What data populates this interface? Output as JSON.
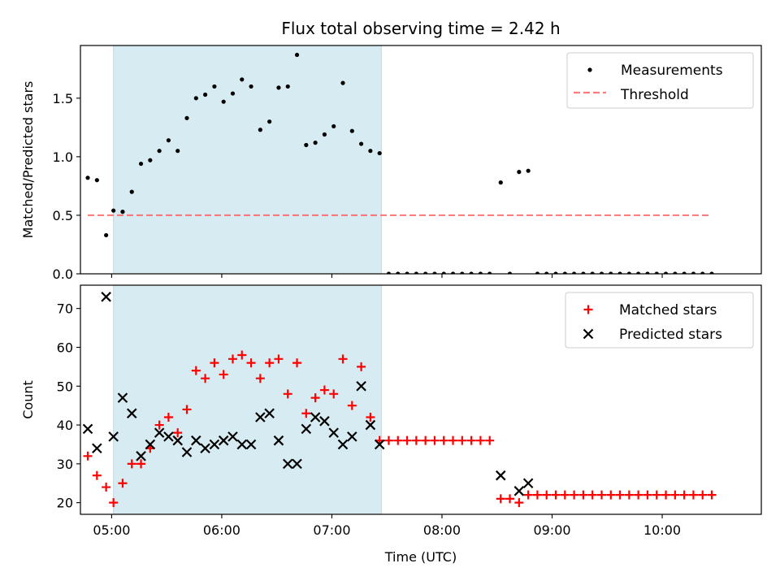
{
  "chart_data": [
    {
      "type": "scatter",
      "title": "Flux total observing time = 2.42 h",
      "xlabel": "",
      "ylabel": "Matched/Predicted stars",
      "ylim": [
        0,
        1.95
      ],
      "y_ticks": [
        "0.0",
        "0.5",
        "1.0",
        "1.5"
      ],
      "x_ticks": [
        "05:00",
        "06:00",
        "07:00",
        "08:00",
        "09:00",
        "10:00"
      ],
      "xlim": [
        "04:43",
        "10:54"
      ],
      "shaded_span": [
        "05:01",
        "07:27"
      ],
      "shaded_color": "#add8e6",
      "legend_position": "top-right",
      "series": [
        {
          "name": "Measurements",
          "marker": "dot",
          "color": "#000000",
          "points": [
            [
              "04:47",
              0.82
            ],
            [
              "04:52",
              0.8
            ],
            [
              "04:57",
              0.33
            ],
            [
              "05:01",
              0.54
            ],
            [
              "05:06",
              0.53
            ],
            [
              "05:11",
              0.7
            ],
            [
              "05:16",
              0.94
            ],
            [
              "05:21",
              0.97
            ],
            [
              "05:26",
              1.05
            ],
            [
              "05:31",
              1.14
            ],
            [
              "05:36",
              1.05
            ],
            [
              "05:41",
              1.33
            ],
            [
              "05:46",
              1.5
            ],
            [
              "05:51",
              1.53
            ],
            [
              "05:56",
              1.6
            ],
            [
              "06:01",
              1.47
            ],
            [
              "06:06",
              1.54
            ],
            [
              "06:11",
              1.66
            ],
            [
              "06:16",
              1.6
            ],
            [
              "06:21",
              1.23
            ],
            [
              "06:26",
              1.3
            ],
            [
              "06:31",
              1.59
            ],
            [
              "06:36",
              1.6
            ],
            [
              "06:41",
              1.87
            ],
            [
              "06:46",
              1.1
            ],
            [
              "06:51",
              1.12
            ],
            [
              "06:56",
              1.19
            ],
            [
              "07:01",
              1.26
            ],
            [
              "07:06",
              1.63
            ],
            [
              "07:11",
              1.22
            ],
            [
              "07:16",
              1.11
            ],
            [
              "07:21",
              1.05
            ],
            [
              "07:26",
              1.03
            ],
            [
              "07:31",
              0
            ],
            [
              "07:36",
              0
            ],
            [
              "07:41",
              0
            ],
            [
              "07:46",
              0
            ],
            [
              "07:51",
              0
            ],
            [
              "07:56",
              0
            ],
            [
              "08:01",
              0
            ],
            [
              "08:06",
              0
            ],
            [
              "08:11",
              0
            ],
            [
              "08:16",
              0
            ],
            [
              "08:21",
              0
            ],
            [
              "08:26",
              0
            ],
            [
              "08:32",
              0.78
            ],
            [
              "08:37",
              0
            ],
            [
              "08:42",
              0.87
            ],
            [
              "08:47",
              0.88
            ],
            [
              "08:52",
              0
            ],
            [
              "08:57",
              0
            ],
            [
              "09:02",
              0
            ],
            [
              "09:07",
              0
            ],
            [
              "09:12",
              0
            ],
            [
              "09:17",
              0
            ],
            [
              "09:22",
              0
            ],
            [
              "09:27",
              0
            ],
            [
              "09:32",
              0
            ],
            [
              "09:37",
              0
            ],
            [
              "09:42",
              0
            ],
            [
              "09:47",
              0
            ],
            [
              "09:52",
              0
            ],
            [
              "09:57",
              0
            ],
            [
              "10:02",
              0
            ],
            [
              "10:07",
              0
            ],
            [
              "10:12",
              0
            ],
            [
              "10:17",
              0
            ],
            [
              "10:22",
              0
            ],
            [
              "10:27",
              0
            ]
          ]
        },
        {
          "name": "Threshold",
          "marker": "dashed-line",
          "color": "#ff6666",
          "points": [
            [
              "04:47",
              0.5
            ],
            [
              "10:27",
              0.5
            ]
          ]
        }
      ]
    },
    {
      "type": "scatter",
      "title": "",
      "xlabel": "Time (UTC)",
      "ylabel": "Count",
      "ylim": [
        17,
        76
      ],
      "y_ticks": [
        "20",
        "30",
        "40",
        "50",
        "60",
        "70"
      ],
      "x_ticks": [
        "05:00",
        "06:00",
        "07:00",
        "08:00",
        "09:00",
        "10:00"
      ],
      "xlim": [
        "04:43",
        "10:54"
      ],
      "shaded_span": [
        "05:01",
        "07:27"
      ],
      "shaded_color": "#add8e6",
      "legend_position": "top-right",
      "series": [
        {
          "name": "Matched stars",
          "marker": "plus",
          "color": "#ff0000",
          "points": [
            [
              "04:47",
              32
            ],
            [
              "04:52",
              27
            ],
            [
              "04:57",
              24
            ],
            [
              "05:01",
              20
            ],
            [
              "05:06",
              25
            ],
            [
              "05:11",
              30
            ],
            [
              "05:16",
              30
            ],
            [
              "05:21",
              34
            ],
            [
              "05:26",
              40
            ],
            [
              "05:31",
              42
            ],
            [
              "05:36",
              38
            ],
            [
              "05:41",
              44
            ],
            [
              "05:46",
              54
            ],
            [
              "05:51",
              52
            ],
            [
              "05:56",
              56
            ],
            [
              "06:01",
              53
            ],
            [
              "06:06",
              57
            ],
            [
              "06:11",
              58
            ],
            [
              "06:16",
              56
            ],
            [
              "06:21",
              52
            ],
            [
              "06:26",
              56
            ],
            [
              "06:31",
              57
            ],
            [
              "06:36",
              48
            ],
            [
              "06:41",
              56
            ],
            [
              "06:46",
              43
            ],
            [
              "06:51",
              47
            ],
            [
              "06:56",
              49
            ],
            [
              "07:01",
              48
            ],
            [
              "07:06",
              57
            ],
            [
              "07:11",
              45
            ],
            [
              "07:16",
              55
            ],
            [
              "07:21",
              42
            ],
            [
              "07:26",
              36
            ],
            [
              "07:31",
              36
            ],
            [
              "07:36",
              36
            ],
            [
              "07:41",
              36
            ],
            [
              "07:46",
              36
            ],
            [
              "07:51",
              36
            ],
            [
              "07:56",
              36
            ],
            [
              "08:01",
              36
            ],
            [
              "08:06",
              36
            ],
            [
              "08:11",
              36
            ],
            [
              "08:16",
              36
            ],
            [
              "08:21",
              36
            ],
            [
              "08:26",
              36
            ],
            [
              "08:32",
              21
            ],
            [
              "08:37",
              21
            ],
            [
              "08:42",
              20
            ],
            [
              "08:47",
              22
            ],
            [
              "08:52",
              22
            ],
            [
              "08:57",
              22
            ],
            [
              "09:02",
              22
            ],
            [
              "09:07",
              22
            ],
            [
              "09:12",
              22
            ],
            [
              "09:17",
              22
            ],
            [
              "09:22",
              22
            ],
            [
              "09:27",
              22
            ],
            [
              "09:32",
              22
            ],
            [
              "09:37",
              22
            ],
            [
              "09:42",
              22
            ],
            [
              "09:47",
              22
            ],
            [
              "09:52",
              22
            ],
            [
              "09:57",
              22
            ],
            [
              "10:02",
              22
            ],
            [
              "10:07",
              22
            ],
            [
              "10:12",
              22
            ],
            [
              "10:17",
              22
            ],
            [
              "10:22",
              22
            ],
            [
              "10:27",
              22
            ]
          ]
        },
        {
          "name": "Predicted stars",
          "marker": "x",
          "color": "#000000",
          "points": [
            [
              "04:47",
              39
            ],
            [
              "04:52",
              34
            ],
            [
              "04:57",
              73
            ],
            [
              "05:01",
              37
            ],
            [
              "05:06",
              47
            ],
            [
              "05:11",
              43
            ],
            [
              "05:16",
              32
            ],
            [
              "05:21",
              35
            ],
            [
              "05:26",
              38
            ],
            [
              "05:31",
              37
            ],
            [
              "05:36",
              36
            ],
            [
              "05:41",
              33
            ],
            [
              "05:46",
              36
            ],
            [
              "05:51",
              34
            ],
            [
              "05:56",
              35
            ],
            [
              "06:01",
              36
            ],
            [
              "06:06",
              37
            ],
            [
              "06:11",
              35
            ],
            [
              "06:16",
              35
            ],
            [
              "06:21",
              42
            ],
            [
              "06:26",
              43
            ],
            [
              "06:31",
              36
            ],
            [
              "06:36",
              30
            ],
            [
              "06:41",
              30
            ],
            [
              "06:46",
              39
            ],
            [
              "06:51",
              42
            ],
            [
              "06:56",
              41
            ],
            [
              "07:01",
              38
            ],
            [
              "07:06",
              35
            ],
            [
              "07:11",
              37
            ],
            [
              "07:16",
              50
            ],
            [
              "07:21",
              40
            ],
            [
              "07:26",
              35
            ],
            [
              "08:32",
              27
            ],
            [
              "08:42",
              23
            ],
            [
              "08:47",
              25
            ]
          ]
        }
      ]
    }
  ]
}
